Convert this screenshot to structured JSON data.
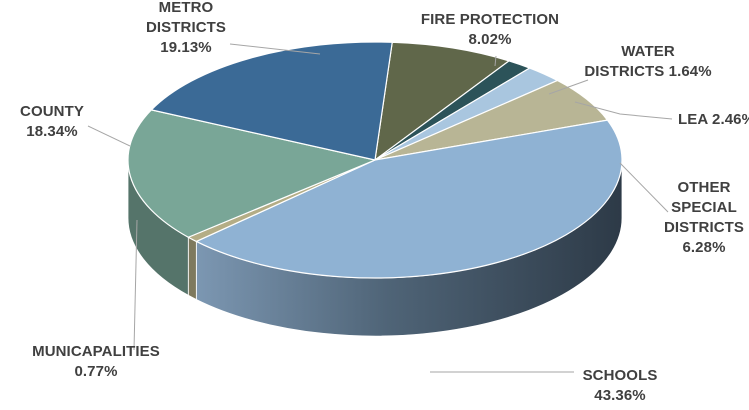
{
  "chart_data": {
    "type": "pie",
    "style": "3d",
    "title": "",
    "series": [
      {
        "categories": [
          "FIRE PROTECTION",
          "WATER DISTRICTS",
          "LEA",
          "OTHER SPECIAL DISTRICTS",
          "SCHOOLS",
          "MUNICAPALITIES",
          "COUNTY",
          "METRO DISTRICTS"
        ],
        "values": [
          8.02,
          1.64,
          2.46,
          6.28,
          43.36,
          0.77,
          18.34,
          19.13
        ],
        "colors": [
          "#60674a",
          "#2c5359",
          "#a9c6df",
          "#b8b595",
          "#8fb2d3",
          "#b4ad86",
          "#79a697",
          "#3b6a96"
        ]
      }
    ],
    "labels": [
      {
        "lines": [
          "FIRE PROTECTION",
          "8.02%"
        ]
      },
      {
        "lines": [
          "WATER",
          "DISTRICTS 1.64%"
        ]
      },
      {
        "lines": [
          "LEA 2.46%"
        ]
      },
      {
        "lines": [
          "OTHER",
          "SPECIAL",
          "DISTRICTS",
          "6.28%"
        ]
      },
      {
        "lines": [
          "SCHOOLS",
          "43.36%"
        ]
      },
      {
        "lines": [
          "MUNICAPALITIES",
          "0.77%"
        ]
      },
      {
        "lines": [
          "COUNTY",
          "18.34%"
        ]
      },
      {
        "lines": [
          "METRO",
          "DISTRICTS",
          "19.13%"
        ]
      }
    ],
    "value_unit": "%",
    "legend": "none",
    "grid": false
  }
}
